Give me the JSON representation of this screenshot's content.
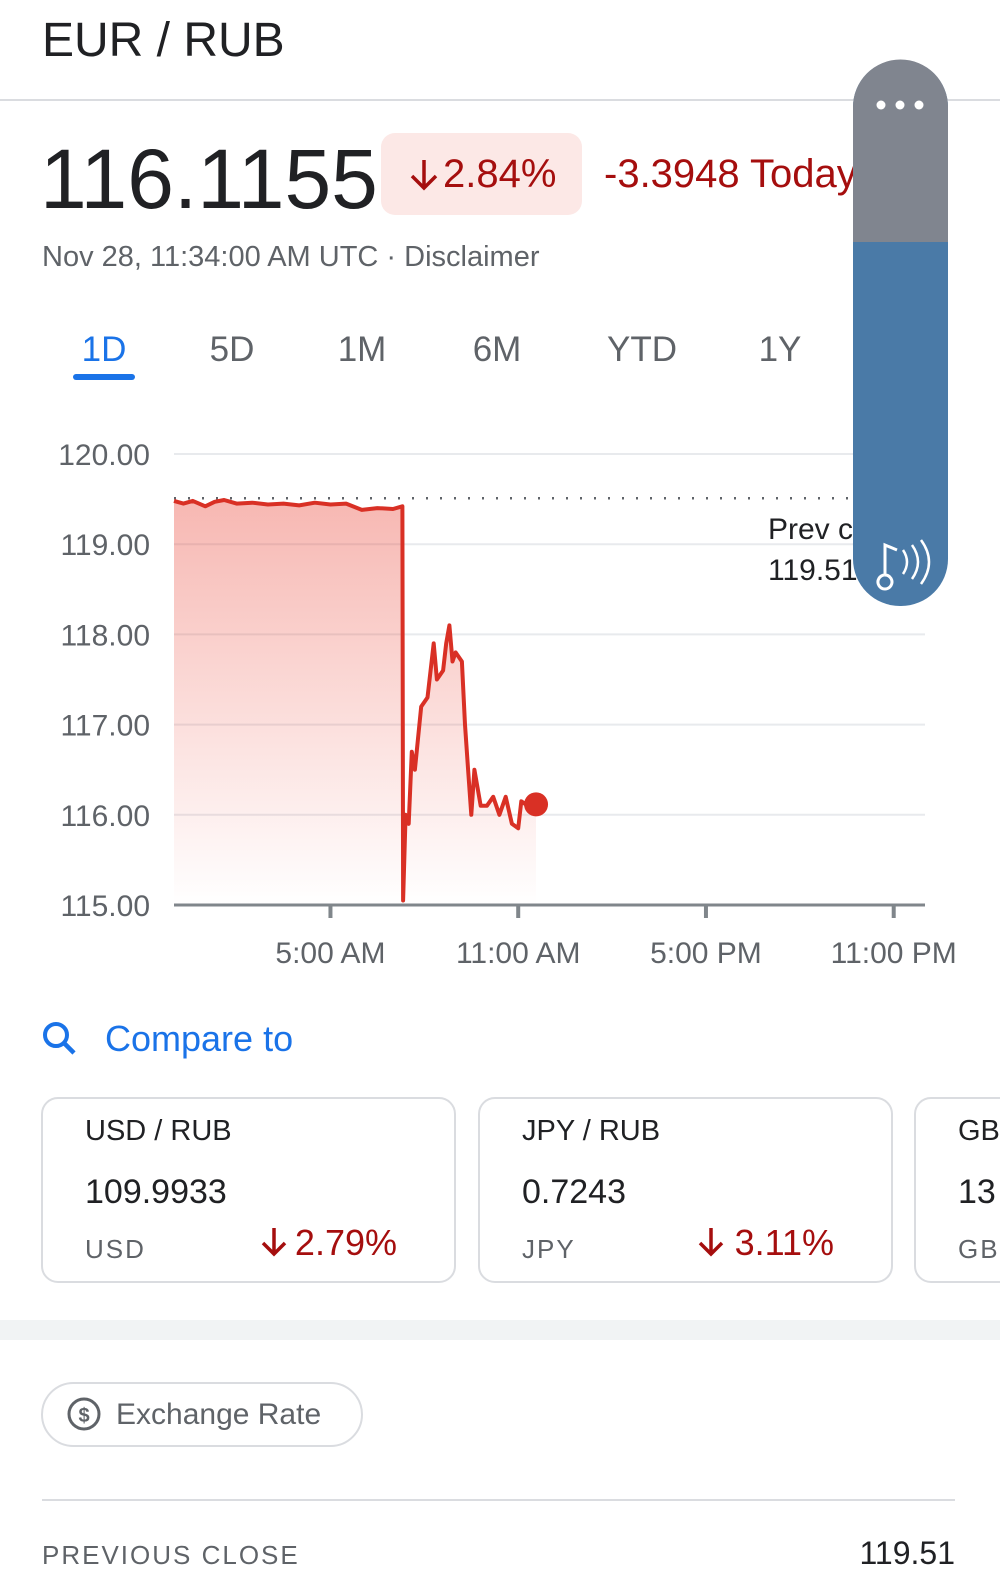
{
  "header": {
    "title": "EUR / RUB"
  },
  "quote": {
    "price": "116.1155",
    "change_percent": "2.84%",
    "change": "-3.3948 Today",
    "timestamp": "Nov 28, 11:34:00 AM UTC",
    "separator": "·",
    "disclaimer": "Disclaimer"
  },
  "tabs": [
    "1D",
    "5D",
    "1M",
    "6M",
    "YTD",
    "1Y"
  ],
  "chart_data": {
    "type": "line",
    "x": [
      0,
      0.3,
      0.6,
      1.0,
      1.3,
      1.6,
      2.0,
      2.5,
      3.0,
      3.5,
      4.0,
      4.5,
      5.0,
      5.5,
      6.0,
      6.5,
      7.0,
      7.3,
      7.32,
      7.4,
      7.5,
      7.6,
      7.7,
      7.9,
      8.1,
      8.3,
      8.4,
      8.6,
      8.7,
      8.8,
      8.9,
      9.0,
      9.2,
      9.3,
      9.4,
      9.5,
      9.6,
      9.8,
      10.0,
      10.2,
      10.4,
      10.6,
      10.8,
      11.0,
      11.1,
      11.3,
      11.57
    ],
    "series": [
      {
        "color": "#d93025",
        "values": [
          119.48,
          119.45,
          119.48,
          119.42,
          119.47,
          119.49,
          119.45,
          119.46,
          119.44,
          119.45,
          119.43,
          119.46,
          119.44,
          119.45,
          119.38,
          119.4,
          119.39,
          119.42,
          115.05,
          116.0,
          115.9,
          116.7,
          116.5,
          117.2,
          117.3,
          117.9,
          117.5,
          117.6,
          117.9,
          118.1,
          117.7,
          117.8,
          117.7,
          117.0,
          116.5,
          116.0,
          116.5,
          116.1,
          116.1,
          116.2,
          116.0,
          116.2,
          115.9,
          115.85,
          116.15,
          116.1,
          116.1155
        ]
      }
    ],
    "xlim": [
      0,
      24
    ],
    "xticks": [
      {
        "value": 5,
        "label": "5:00 AM"
      },
      {
        "value": 11,
        "label": "11:00 AM"
      },
      {
        "value": 17,
        "label": "5:00 PM"
      },
      {
        "value": 23,
        "label": "11:00 PM"
      }
    ],
    "ylim": [
      115,
      120
    ],
    "yticks": [
      {
        "value": 115,
        "label": "115.00"
      },
      {
        "value": 116,
        "label": "116.00"
      },
      {
        "value": 117,
        "label": "117.00"
      },
      {
        "value": 118,
        "label": "118.00"
      },
      {
        "value": 119,
        "label": "119.00"
      },
      {
        "value": 120,
        "label": "120.00"
      }
    ],
    "grid": true,
    "reference_line": {
      "label": "Prev close",
      "value": 119.51
    }
  },
  "compare": {
    "title": "Compare to",
    "cards": [
      {
        "pair": "USD / RUB",
        "rate": "109.9933",
        "base": "USD",
        "change": "2.79%"
      },
      {
        "pair": "JPY / RUB",
        "rate": "0.7243",
        "base": "JPY",
        "change": "3.11%"
      },
      {
        "pair": "GB",
        "rate": "13",
        "base": "GB"
      }
    ]
  },
  "details": {
    "button": "Exchange Rate",
    "rows": [
      {
        "label": "PREVIOUS CLOSE",
        "value": "119.51"
      }
    ]
  }
}
